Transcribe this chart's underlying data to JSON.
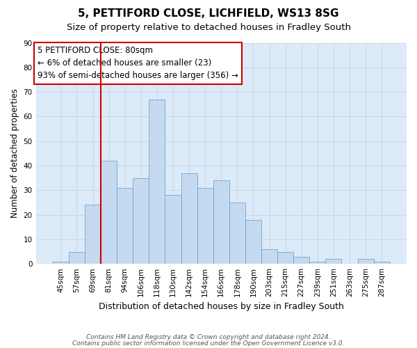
{
  "title": "5, PETTIFORD CLOSE, LICHFIELD, WS13 8SG",
  "subtitle": "Size of property relative to detached houses in Fradley South",
  "xlabel": "Distribution of detached houses by size in Fradley South",
  "ylabel": "Number of detached properties",
  "bin_labels": [
    "45sqm",
    "57sqm",
    "69sqm",
    "81sqm",
    "94sqm",
    "106sqm",
    "118sqm",
    "130sqm",
    "142sqm",
    "154sqm",
    "166sqm",
    "178sqm",
    "190sqm",
    "203sqm",
    "215sqm",
    "227sqm",
    "239sqm",
    "251sqm",
    "263sqm",
    "275sqm",
    "287sqm"
  ],
  "bar_heights": [
    1,
    5,
    24,
    42,
    31,
    35,
    67,
    28,
    37,
    31,
    34,
    25,
    18,
    6,
    5,
    3,
    1,
    2,
    0,
    2,
    1
  ],
  "bar_color": "#c5d9f0",
  "bar_edge_color": "#6aaad4",
  "grid_color": "#c8d8ee",
  "background_color": "#ddeaf8",
  "annotation_text": "5 PETTIFORD CLOSE: 80sqm\n← 6% of detached houses are smaller (23)\n93% of semi-detached houses are larger (356) →",
  "vline_color": "#cc0000",
  "vline_pos": 2.5,
  "ylim": [
    0,
    90
  ],
  "yticks": [
    0,
    10,
    20,
    30,
    40,
    50,
    60,
    70,
    80,
    90
  ],
  "footer_line1": "Contains HM Land Registry data © Crown copyright and database right 2024.",
  "footer_line2": "Contains public sector information licensed under the Open Government Licence v3.0.",
  "title_fontsize": 11,
  "subtitle_fontsize": 9.5,
  "xlabel_fontsize": 9,
  "ylabel_fontsize": 8.5,
  "tick_fontsize": 7.5,
  "annotation_fontsize": 8.5,
  "footer_fontsize": 6.5
}
